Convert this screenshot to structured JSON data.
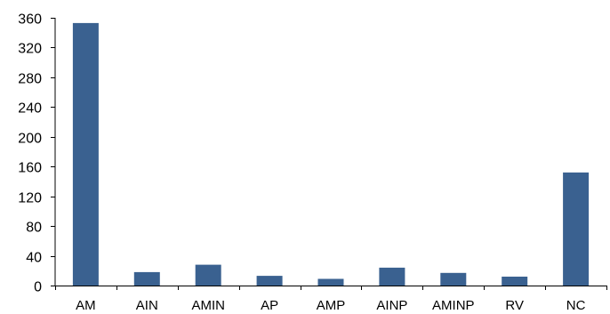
{
  "chart_data": {
    "type": "bar",
    "title": "",
    "xlabel": "",
    "ylabel": "",
    "categories": [
      "AM",
      "AIN",
      "AMIN",
      "AP",
      "AMP",
      "AINP",
      "AMINP",
      "RV",
      "NC"
    ],
    "values": [
      353,
      18,
      28,
      13,
      9,
      24,
      17,
      12,
      152
    ],
    "ylim": [
      0,
      360
    ],
    "yticks": [
      0,
      40,
      80,
      120,
      160,
      200,
      240,
      280,
      320,
      360
    ],
    "grid": false,
    "legend": "none",
    "bar_color": "#3a6190"
  }
}
